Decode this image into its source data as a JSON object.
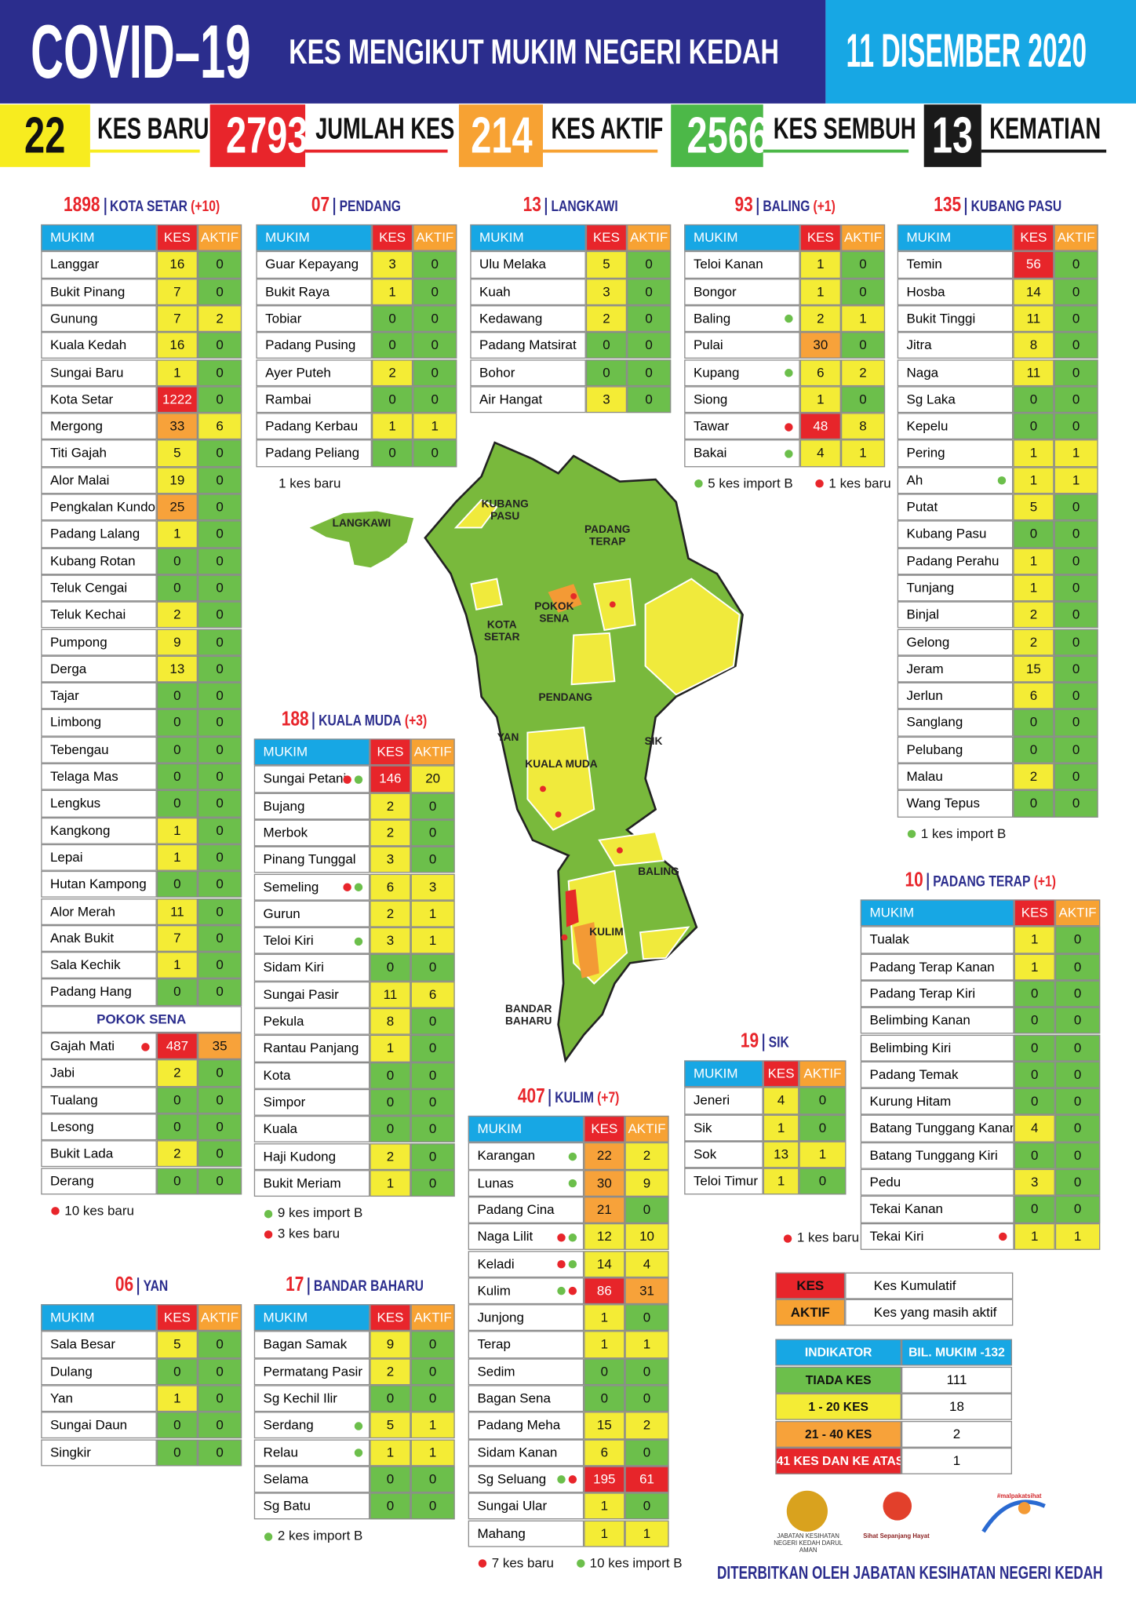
{
  "header": {
    "title": "COVID–19",
    "subtitle": "KES MENGIKUT MUKIM NEGERI KEDAH",
    "date": "11 DISEMBER 2020"
  },
  "stats": [
    {
      "value": 22,
      "label": "KES BARU",
      "color": "#f7ec1f",
      "text_color": "#111111"
    },
    {
      "value": 2793,
      "label": "JUMLAH KES",
      "color": "#e8252b",
      "text_color": "#ffffff"
    },
    {
      "value": 214,
      "label": "KES AKTIF",
      "color": "#f7a233",
      "text_color": "#ffffff"
    },
    {
      "value": 2566,
      "label": "KES SEMBUH",
      "color": "#4cb848",
      "text_color": "#ffffff"
    },
    {
      "value": 13,
      "label": "KEMATIAN",
      "color": "#1a1a1a",
      "text_color": "#ffffff"
    }
  ],
  "columns": [
    "MUKIM",
    "KES",
    "AKTIF"
  ],
  "districts": [
    {
      "count": 1898,
      "name": "KOTA SETAR",
      "change": "(+10)",
      "rows": [
        [
          "Langgar",
          16,
          0
        ],
        [
          "Bukit Pinang",
          7,
          0
        ],
        [
          "Gunung",
          7,
          2
        ],
        [
          "Kuala Kedah",
          16,
          0
        ],
        [
          "Sungai Baru",
          1,
          0
        ],
        [
          "Kota Setar",
          1222,
          0
        ],
        [
          "Mergong",
          33,
          6
        ],
        [
          "Titi Gajah",
          5,
          0
        ],
        [
          "Alor Malai",
          19,
          0
        ],
        [
          "Pengkalan Kundor",
          25,
          0
        ],
        [
          "Padang Lalang",
          1,
          0
        ],
        [
          "Kubang Rotan",
          0,
          0
        ],
        [
          "Teluk Cengai",
          0,
          0
        ],
        [
          "Teluk Kechai",
          2,
          0
        ],
        [
          "Pumpong",
          9,
          0
        ],
        [
          "Derga",
          13,
          0
        ],
        [
          "Tajar",
          0,
          0
        ],
        [
          "Limbong",
          0,
          0
        ],
        [
          "Tebengau",
          0,
          0
        ],
        [
          "Telaga Mas",
          0,
          0
        ],
        [
          "Lengkus",
          0,
          0
        ],
        [
          "Kangkong",
          1,
          0
        ],
        [
          "Lepai",
          1,
          0
        ],
        [
          "Hutan Kampong",
          0,
          0
        ],
        [
          "Alor Merah",
          11,
          0
        ],
        [
          "Anak Bukit",
          7,
          0
        ],
        [
          "Sala Kechik",
          1,
          0
        ],
        [
          "Padang Hang",
          0,
          0
        ]
      ],
      "sub": {
        "name": "POKOK SENA",
        "rows": [
          [
            "Gajah Mati",
            487,
            35,
            [
              "#e8252b"
            ]
          ],
          [
            "Jabi",
            2,
            0
          ],
          [
            "Tualang",
            0,
            0
          ],
          [
            "Lesong",
            0,
            0
          ],
          [
            "Bukit Lada",
            2,
            0
          ],
          [
            "Derang",
            0,
            0
          ]
        ]
      },
      "notes": [
        {
          "text": "10 kes baru",
          "marker": "#e8252b"
        }
      ]
    },
    {
      "count": "07",
      "name": "PENDANG",
      "rows": [
        [
          "Guar Kepayang",
          3,
          0
        ],
        [
          "Bukit Raya",
          1,
          0
        ],
        [
          "Tobiar",
          0,
          0
        ],
        [
          "Padang Pusing",
          0,
          0
        ],
        [
          "Ayer Puteh",
          2,
          0
        ],
        [
          "Rambai",
          0,
          0
        ],
        [
          "Padang Kerbau",
          1,
          1
        ],
        [
          "Padang Peliang",
          0,
          0
        ]
      ],
      "notes": [
        {
          "text": "1 kes baru"
        }
      ]
    },
    {
      "count": 13,
      "name": "LANGKAWI",
      "rows": [
        [
          "Ulu Melaka",
          5,
          0
        ],
        [
          "Kuah",
          3,
          0
        ],
        [
          "Kedawang",
          2,
          0
        ],
        [
          "Padang Matsirat",
          0,
          0
        ],
        [
          "Bohor",
          0,
          0
        ],
        [
          "Air Hangat",
          3,
          0
        ]
      ]
    },
    {
      "count": 93,
      "name": "BALING",
      "change": "(+1)",
      "rows": [
        [
          "Teloi Kanan",
          1,
          0
        ],
        [
          "Bongor",
          1,
          0
        ],
        [
          "Baling",
          2,
          1,
          [
            "#6cbf4b"
          ]
        ],
        [
          "Pulai",
          30,
          0
        ],
        [
          "Kupang",
          6,
          2,
          [
            "#6cbf4b"
          ]
        ],
        [
          "Siong",
          1,
          0
        ],
        [
          "Tawar",
          48,
          8,
          [
            "#e8252b"
          ]
        ],
        [
          "Bakai",
          4,
          1,
          [
            "#6cbf4b"
          ]
        ]
      ],
      "notes": [
        {
          "text": "5 kes import B",
          "marker": "#6cbf4b"
        },
        {
          "text": "1 kes baru",
          "marker": "#e8252b"
        }
      ]
    },
    {
      "count": 135,
      "name": "KUBANG PASU",
      "rows": [
        [
          "Temin",
          56,
          0
        ],
        [
          "Hosba",
          14,
          0
        ],
        [
          "Bukit Tinggi",
          11,
          0
        ],
        [
          "Jitra",
          8,
          0
        ],
        [
          "Naga",
          11,
          0
        ],
        [
          "Sg Laka",
          0,
          0
        ],
        [
          "Kepelu",
          0,
          0
        ],
        [
          "Pering",
          1,
          1
        ],
        [
          "Ah",
          1,
          1,
          [
            "#6cbf4b"
          ]
        ],
        [
          "Putat",
          5,
          0
        ],
        [
          "Kubang Pasu",
          0,
          0
        ],
        [
          "Padang Perahu",
          1,
          0
        ],
        [
          "Tunjang",
          1,
          0
        ],
        [
          "Binjal",
          2,
          0
        ],
        [
          "Gelong",
          2,
          0
        ],
        [
          "Jeram",
          15,
          0
        ],
        [
          "Jerlun",
          6,
          0
        ],
        [
          "Sanglang",
          0,
          0
        ],
        [
          "Pelubang",
          0,
          0
        ],
        [
          "Malau",
          2,
          0
        ],
        [
          "Wang Tepus",
          0,
          0
        ]
      ],
      "notes": [
        {
          "text": "1 kes import B",
          "marker": "#6cbf4b"
        }
      ]
    },
    {
      "count": 188,
      "name": "KUALA MUDA",
      "change": "(+3)",
      "rows": [
        [
          "Sungai Petani",
          146,
          20,
          [
            "#e8252b",
            "#6cbf4b"
          ]
        ],
        [
          "Bujang",
          2,
          0
        ],
        [
          "Merbok",
          2,
          0
        ],
        [
          "Pinang Tunggal",
          3,
          0
        ],
        [
          "Semeling",
          6,
          3,
          [
            "#e8252b",
            "#6cbf4b"
          ]
        ],
        [
          "Gurun",
          2,
          1
        ],
        [
          "Teloi Kiri",
          3,
          1,
          [
            "#6cbf4b"
          ]
        ],
        [
          "Sidam Kiri",
          0,
          0
        ],
        [
          "Sungai Pasir",
          11,
          6
        ],
        [
          "Pekula",
          8,
          0
        ],
        [
          "Rantau Panjang",
          1,
          0
        ],
        [
          "Kota",
          0,
          0
        ],
        [
          "Simpor",
          0,
          0
        ],
        [
          "Kuala",
          0,
          0
        ],
        [
          "Haji Kudong",
          2,
          0
        ],
        [
          "Bukit Meriam",
          1,
          0
        ]
      ],
      "notes": [
        {
          "text": "9 kes import B",
          "marker": "#6cbf4b"
        },
        {
          "text": "3 kes baru",
          "marker": "#e8252b"
        }
      ]
    },
    {
      "count": 10,
      "name": "PADANG TERAP",
      "change": "(+1)",
      "rows": [
        [
          "Tualak",
          1,
          0
        ],
        [
          "Padang Terap Kanan",
          1,
          0
        ],
        [
          "Padang Terap Kiri",
          0,
          0
        ],
        [
          "Belimbing Kanan",
          0,
          0
        ],
        [
          "Belimbing Kiri",
          0,
          0
        ],
        [
          "Padang Temak",
          0,
          0
        ],
        [
          "Kurung Hitam",
          0,
          0
        ],
        [
          "Batang Tunggang Kanan",
          4,
          0
        ],
        [
          "Batang Tunggang Kiri",
          0,
          0
        ],
        [
          "Pedu",
          3,
          0
        ],
        [
          "Tekai Kanan",
          0,
          0
        ],
        [
          "Tekai Kiri",
          1,
          1,
          [
            "#e8252b"
          ]
        ]
      ]
    },
    {
      "count": 19,
      "name": "SIK",
      "rows": [
        [
          "Jeneri",
          4,
          0
        ],
        [
          "Sik",
          1,
          0
        ],
        [
          "Sok",
          13,
          1
        ],
        [
          "Teloi Timur",
          1,
          0
        ]
      ],
      "notes": [
        {
          "text": "1 kes baru",
          "marker": "#e8252b"
        }
      ]
    },
    {
      "count": 407,
      "name": "KULIM",
      "change": "(+7)",
      "rows": [
        [
          "Karangan",
          22,
          2,
          [
            "#6cbf4b"
          ]
        ],
        [
          "Lunas",
          30,
          9,
          [
            "#6cbf4b"
          ]
        ],
        [
          "Padang Cina",
          21,
          0
        ],
        [
          "Naga Lilit",
          12,
          10,
          [
            "#e8252b",
            "#6cbf4b"
          ]
        ],
        [
          "Keladi",
          14,
          4,
          [
            "#e8252b",
            "#6cbf4b"
          ]
        ],
        [
          "Kulim",
          86,
          31,
          [
            "#6cbf4b",
            "#e8252b"
          ]
        ],
        [
          "Junjong",
          1,
          0
        ],
        [
          "Terap",
          1,
          1
        ],
        [
          "Sedim",
          0,
          0
        ],
        [
          "Bagan Sena",
          0,
          0
        ],
        [
          "Padang Meha",
          15,
          2
        ],
        [
          "Sidam Kanan",
          6,
          0
        ],
        [
          "Sg Seluang",
          195,
          61,
          [
            "#6cbf4b",
            "#e8252b"
          ]
        ],
        [
          "Sungai Ular",
          1,
          0
        ],
        [
          "Mahang",
          1,
          1
        ]
      ],
      "notes": [
        {
          "text": "7 kes baru",
          "marker": "#e8252b"
        },
        {
          "text": "10 kes import B",
          "marker": "#6cbf4b"
        }
      ]
    },
    {
      "count": "06",
      "name": "YAN",
      "rows": [
        [
          "Sala Besar",
          5,
          0
        ],
        [
          "Dulang",
          0,
          0
        ],
        [
          "Yan",
          1,
          0
        ],
        [
          "Sungai Daun",
          0,
          0
        ],
        [
          "Singkir",
          0,
          0
        ]
      ]
    },
    {
      "count": 17,
      "name": "BANDAR BAHARU",
      "rows": [
        [
          "Bagan Samak",
          9,
          0
        ],
        [
          "Permatang Pasir",
          2,
          0
        ],
        [
          "Sg Kechil Ilir",
          0,
          0
        ],
        [
          "Serdang",
          5,
          1,
          [
            "#6cbf4b"
          ]
        ],
        [
          "Relau",
          1,
          1,
          [
            "#6cbf4b"
          ]
        ],
        [
          "Selama",
          0,
          0
        ],
        [
          "Sg Batu",
          0,
          0
        ]
      ],
      "notes": [
        {
          "text": "2 kes import B",
          "marker": "#6cbf4b"
        }
      ]
    }
  ],
  "map_labels": [
    "KUBANG PASU",
    "LANGKAWI",
    "PADANG TERAP",
    "KOTA SETAR",
    "POKOK SENA",
    "PENDANG",
    "YAN",
    "KUALA MUDA",
    "SIK",
    "BALING",
    "KULIM",
    "BANDAR BAHARU"
  ],
  "legend": [
    {
      "key": "KES",
      "text": "Kes Kumulatif",
      "color": "#e8252b"
    },
    {
      "key": "AKTIF",
      "text": "Kes yang masih aktif",
      "color": "#f7a233"
    }
  ],
  "indicator": {
    "headers": [
      "INDIKATOR",
      "BIL. MUKIM -132"
    ],
    "rows": [
      [
        "TIADA KES",
        111,
        "#6cbf4b"
      ],
      [
        "1 - 20 KES",
        18,
        "#f4ec35"
      ],
      [
        "21 - 40 KES",
        2,
        "#f7a23a"
      ],
      [
        "41 KES DAN KE ATAS",
        1,
        "#e7252a"
      ]
    ]
  },
  "logos": [
    "JABATAN KESIHATAN NEGERI KEDAH DARUL AMAN",
    "Sihat Sepanjang Hayat",
    "#malpakatsihat"
  ],
  "publisher": "DITERBITKAN OLEH JABATAN KESIHATAN NEGERI KEDAH"
}
